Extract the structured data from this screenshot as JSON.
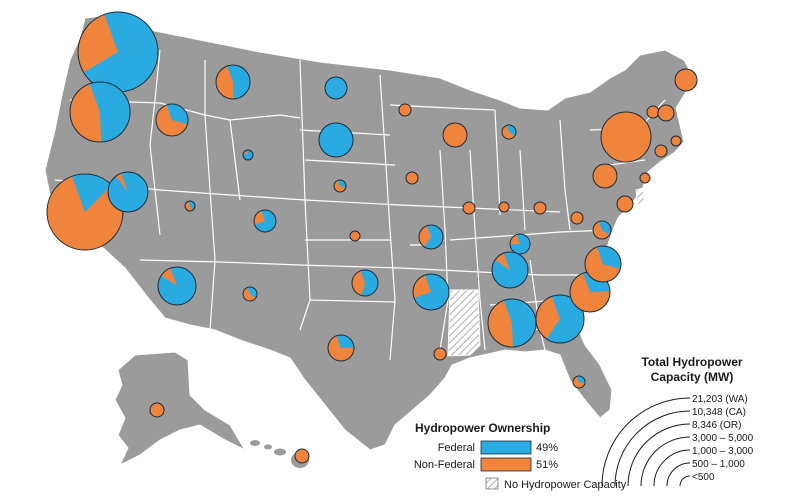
{
  "colors": {
    "land": "#9b9b9b",
    "border": "#ffffff",
    "federal": "#29abe2",
    "non_federal": "#f0843c",
    "outline": "#1b2a3a"
  },
  "ownership_legend": {
    "title": "Hydropower Ownership",
    "items": [
      {
        "label": "Federal",
        "value": "49%"
      },
      {
        "label": "Non-Federal",
        "value": "51%"
      }
    ],
    "no_capacity_label": "No Hydropower Capacity"
  },
  "size_legend": {
    "title_line1": "Total Hydropower",
    "title_line2": "Capacity (MW)",
    "labels": [
      "21,203 (WA)",
      "10,348 (CA)",
      "8,346 (OR)",
      "3,000 – 5,000",
      "1,000 – 3,000",
      "500 – 1,000",
      "<500"
    ]
  },
  "states": [
    {
      "abbr": "WA",
      "federal_share": 0.72
    },
    {
      "abbr": "OR",
      "federal_share": 0.55
    },
    {
      "abbr": "CA",
      "federal_share": 0.18
    },
    {
      "abbr": "ID",
      "federal_share": 0.35
    },
    {
      "abbr": "MT",
      "federal_share": 0.55
    },
    {
      "abbr": "NV",
      "federal_share": 0.95
    },
    {
      "abbr": "AZ",
      "federal_share": 0.9
    },
    {
      "abbr": "UT",
      "federal_share": 0.45
    },
    {
      "abbr": "WY",
      "federal_share": 0.88
    },
    {
      "abbr": "CO",
      "federal_share": 0.75
    },
    {
      "abbr": "NM",
      "federal_share": 0.4
    },
    {
      "abbr": "ND",
      "federal_share": 1.0
    },
    {
      "abbr": "SD",
      "federal_share": 1.0
    },
    {
      "abbr": "NE",
      "federal_share": 0.35
    },
    {
      "abbr": "KS",
      "federal_share": 0.0
    },
    {
      "abbr": "OK",
      "federal_share": 0.6
    },
    {
      "abbr": "TX",
      "federal_share": 0.3
    },
    {
      "abbr": "MN",
      "federal_share": 0.0
    },
    {
      "abbr": "IA",
      "federal_share": 0.0
    },
    {
      "abbr": "MO",
      "federal_share": 0.65
    },
    {
      "abbr": "AR",
      "federal_share": 0.75
    },
    {
      "abbr": "LA",
      "federal_share": 0.0
    },
    {
      "abbr": "WI",
      "federal_share": 0.0
    },
    {
      "abbr": "MI",
      "federal_share": 0.4
    },
    {
      "abbr": "IL",
      "federal_share": 0.0
    },
    {
      "abbr": "IN",
      "federal_share": 0.0
    },
    {
      "abbr": "OH",
      "federal_share": 0.0
    },
    {
      "abbr": "KY",
      "federal_share": 0.8
    },
    {
      "abbr": "TN",
      "federal_share": 0.9
    },
    {
      "abbr": "AL",
      "federal_share": 0.55
    },
    {
      "abbr": "GA",
      "federal_share": 0.65
    },
    {
      "abbr": "FL",
      "federal_share": 0.35
    },
    {
      "abbr": "SC",
      "federal_share": 0.3
    },
    {
      "abbr": "NC",
      "federal_share": 0.35
    },
    {
      "abbr": "VA",
      "federal_share": 0.4
    },
    {
      "abbr": "WV",
      "federal_share": 0.0
    },
    {
      "abbr": "PA",
      "federal_share": 0.0
    },
    {
      "abbr": "NY",
      "federal_share": 0.0
    },
    {
      "abbr": "MD",
      "federal_share": 0.0
    },
    {
      "abbr": "NJ",
      "federal_share": 0.0
    },
    {
      "abbr": "CT",
      "federal_share": 0.0
    },
    {
      "abbr": "MA",
      "federal_share": 0.0
    },
    {
      "abbr": "VT",
      "federal_share": 0.0
    },
    {
      "abbr": "NH",
      "federal_share": 0.0
    },
    {
      "abbr": "ME",
      "federal_share": 0.0
    },
    {
      "abbr": "AK",
      "federal_share": 0.0
    },
    {
      "abbr": "HI",
      "federal_share": 0.0
    }
  ]
}
